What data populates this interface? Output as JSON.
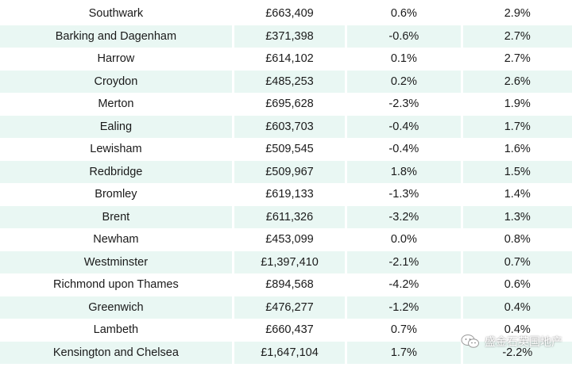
{
  "table": {
    "rows": [
      {
        "area": "Southwark",
        "price": "£663,409",
        "monthly": "0.6%",
        "annual": "2.9%"
      },
      {
        "area": "Barking and Dagenham",
        "price": "£371,398",
        "monthly": "-0.6%",
        "annual": "2.7%"
      },
      {
        "area": "Harrow",
        "price": "£614,102",
        "monthly": "0.1%",
        "annual": "2.7%"
      },
      {
        "area": "Croydon",
        "price": "£485,253",
        "monthly": "0.2%",
        "annual": "2.6%"
      },
      {
        "area": "Merton",
        "price": "£695,628",
        "monthly": "-2.3%",
        "annual": "1.9%"
      },
      {
        "area": "Ealing",
        "price": "£603,703",
        "monthly": "-0.4%",
        "annual": "1.7%"
      },
      {
        "area": "Lewisham",
        "price": "£509,545",
        "monthly": "-0.4%",
        "annual": "1.6%"
      },
      {
        "area": "Redbridge",
        "price": "£509,967",
        "monthly": "1.8%",
        "annual": "1.5%"
      },
      {
        "area": "Bromley",
        "price": "£619,133",
        "monthly": "-1.3%",
        "annual": "1.4%"
      },
      {
        "area": "Brent",
        "price": "£611,326",
        "monthly": "-3.2%",
        "annual": "1.3%"
      },
      {
        "area": "Newham",
        "price": "£453,099",
        "monthly": "0.0%",
        "annual": "0.8%"
      },
      {
        "area": "Westminster",
        "price": "£1,397,410",
        "monthly": "-2.1%",
        "annual": "0.7%"
      },
      {
        "area": "Richmond upon Thames",
        "price": "£894,568",
        "monthly": "-4.2%",
        "annual": "0.6%"
      },
      {
        "area": "Greenwich",
        "price": "£476,277",
        "monthly": "-1.2%",
        "annual": "0.4%"
      },
      {
        "area": "Lambeth",
        "price": "£660,437",
        "monthly": "0.7%",
        "annual": "0.4%"
      },
      {
        "area": "Kensington and Chelsea",
        "price": "£1,647,104",
        "monthly": "1.7%",
        "annual": "-2.2%"
      }
    ]
  },
  "watermark": {
    "text": "盛金石英国地产",
    "icon": "wechat-icon"
  },
  "colors": {
    "row_stripe": "#e9f7f3",
    "text": "#1a1a1a"
  }
}
